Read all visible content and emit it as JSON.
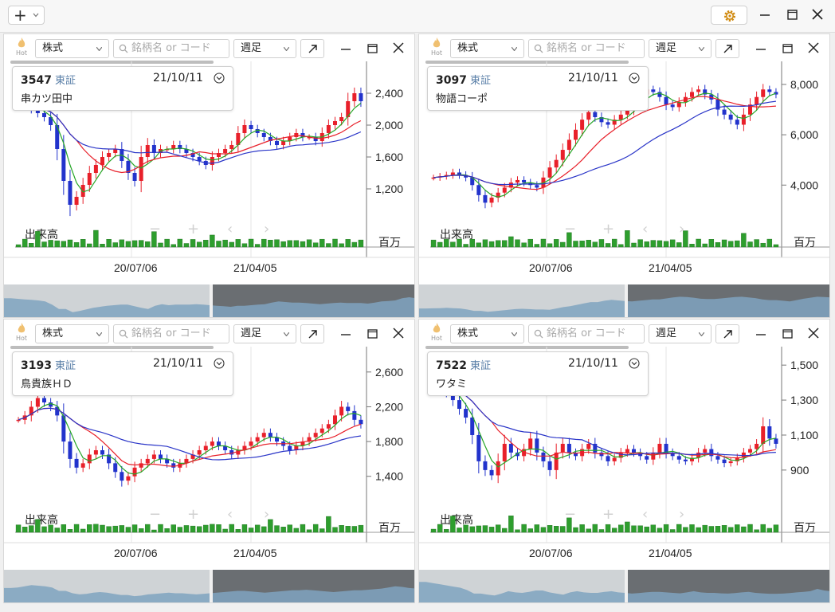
{
  "toolbar": {
    "add_icon": "plus-icon",
    "settings_icon": "gear-icon",
    "window_controls": [
      "minimize-icon",
      "maximize-icon",
      "close-icon"
    ]
  },
  "common": {
    "hot_label": "Hot",
    "market_select": "株式",
    "search_placeholder": "銘柄名 or コード",
    "period_select": "週足",
    "volume_label": "出来高",
    "volume_unit": "百万",
    "x_ticks": [
      "20/07/06",
      "21/04/05"
    ],
    "colors": {
      "up": "#e8202a",
      "down": "#2233cc",
      "ma_short": "#27a627",
      "ma_mid": "#e8202a",
      "ma_long": "#2a35c8",
      "volume": "#2e9e2e",
      "nav_fill": "#7fa3bf"
    }
  },
  "panels": [
    {
      "code": "3547",
      "market": "東証",
      "date": "21/10/11",
      "name": "串カツ田中",
      "chart_data": {
        "type": "candlestick",
        "y_ticks": [
          "2,400",
          "2,000",
          "1,600",
          "1,200"
        ],
        "y_range": [
          900,
          2700
        ],
        "close": [
          2300,
          2250,
          2200,
          2150,
          2100,
          2000,
          1700,
          1300,
          1000,
          1100,
          1250,
          1400,
          1500,
          1600,
          1650,
          1700,
          1550,
          1400,
          1300,
          1600,
          1750,
          1650,
          1700,
          1700,
          1750,
          1700,
          1650,
          1600,
          1550,
          1500,
          1600,
          1650,
          1700,
          1750,
          1900,
          2000,
          1950,
          1900,
          1850,
          1800,
          1750,
          1800,
          1850,
          1900,
          1850,
          1850,
          1800,
          1900,
          2000,
          2050,
          2100,
          2300,
          2400,
          2300
        ]
      }
    },
    {
      "code": "3097",
      "market": "東証",
      "date": "21/10/11",
      "name": "物語コーポ",
      "chart_data": {
        "type": "candlestick",
        "y_ticks": [
          "8,000",
          "6,000",
          "4,000"
        ],
        "y_range": [
          2900,
          8600
        ],
        "close": [
          4300,
          4350,
          4400,
          4500,
          4400,
          4300,
          4000,
          3600,
          3300,
          3500,
          3700,
          3900,
          4100,
          4200,
          4100,
          4000,
          3900,
          4300,
          4700,
          5000,
          5400,
          5800,
          6200,
          6600,
          6900,
          6700,
          6500,
          6400,
          6600,
          6800,
          7000,
          7300,
          7600,
          7800,
          7700,
          7500,
          7200,
          7100,
          7300,
          7500,
          7700,
          7800,
          7600,
          7400,
          7000,
          6800,
          6600,
          6400,
          6800,
          7200,
          7500,
          7800,
          7700,
          7600
        ]
      }
    },
    {
      "code": "3193",
      "market": "東証",
      "date": "21/10/11",
      "name": "鳥貴族ＨＤ",
      "chart_data": {
        "type": "candlestick",
        "y_ticks": [
          "2,600",
          "2,200",
          "1,800",
          "1,400"
        ],
        "y_range": [
          1150,
          2800
        ],
        "close": [
          2050,
          2100,
          2200,
          2300,
          2250,
          2200,
          2100,
          1800,
          1600,
          1500,
          1550,
          1650,
          1700,
          1650,
          1550,
          1450,
          1350,
          1400,
          1500,
          1550,
          1600,
          1650,
          1600,
          1550,
          1500,
          1550,
          1600,
          1650,
          1700,
          1750,
          1800,
          1750,
          1700,
          1650,
          1700,
          1750,
          1800,
          1850,
          1900,
          1850,
          1800,
          1750,
          1700,
          1750,
          1800,
          1850,
          1900,
          1950,
          2000,
          2100,
          2200,
          2150,
          2050,
          2000
        ]
      }
    },
    {
      "code": "7522",
      "market": "東証",
      "date": "21/10/11",
      "name": "ワタミ",
      "chart_data": {
        "type": "candlestick",
        "y_ticks": [
          "1,500",
          "1,300",
          "1,100",
          "900"
        ],
        "y_range": [
          740,
          1560
        ],
        "close": [
          1450,
          1400,
          1350,
          1300,
          1250,
          1200,
          1100,
          950,
          900,
          870,
          950,
          1050,
          1000,
          980,
          1020,
          1080,
          1000,
          950,
          900,
          1000,
          1050,
          1000,
          980,
          1020,
          1050,
          1000,
          980,
          950,
          970,
          1000,
          1020,
          1000,
          980,
          960,
          1000,
          1050,
          1000,
          980,
          960,
          950,
          970,
          1000,
          1020,
          980,
          960,
          940,
          950,
          970,
          1000,
          1020,
          1050,
          1150,
          1080,
          1050
        ]
      }
    }
  ]
}
